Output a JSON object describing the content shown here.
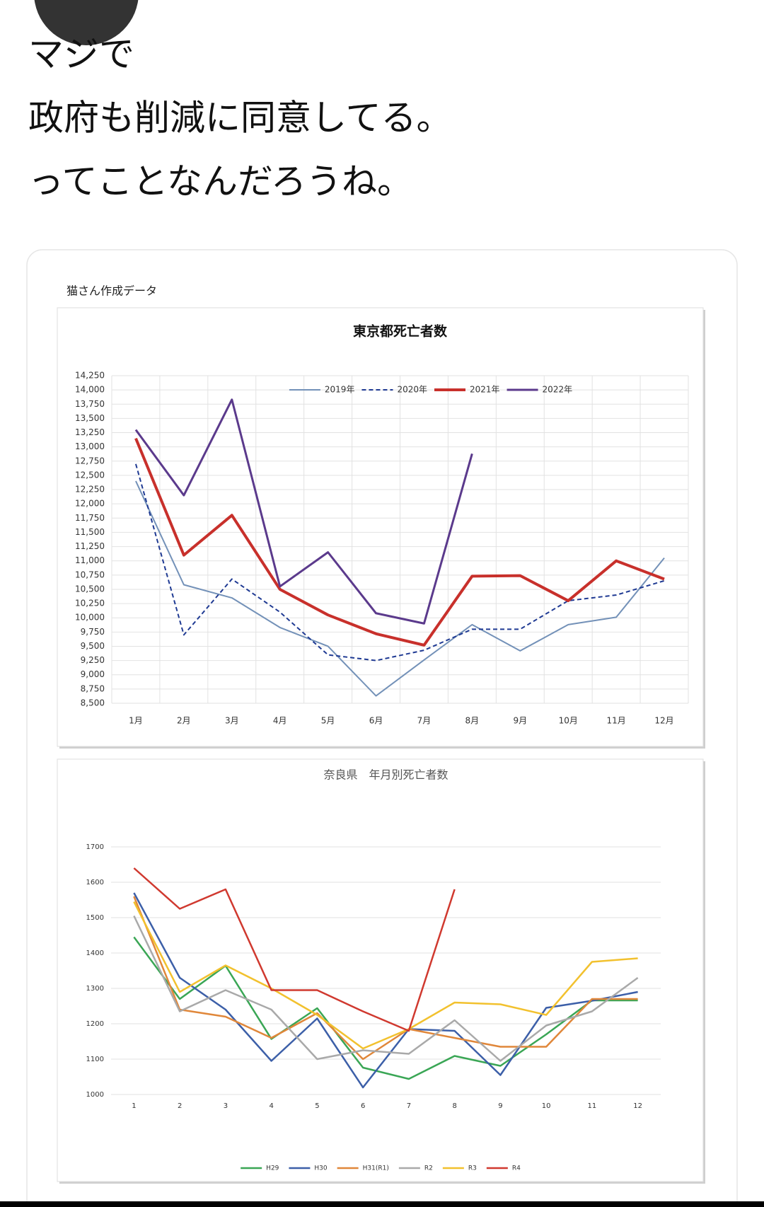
{
  "tweet": {
    "lines": [
      "マジで",
      "政府も削減に同意してる。",
      "ってことなんだろうね。"
    ]
  },
  "card_label": "猫さん作成データ",
  "chart_data": [
    {
      "type": "line",
      "title": "東京都死亡者数",
      "categories": [
        "1月",
        "2月",
        "3月",
        "4月",
        "5月",
        "6月",
        "7月",
        "8月",
        "9月",
        "10月",
        "11月",
        "12月"
      ],
      "series": [
        {
          "name": "2019年",
          "color": "#7391b8",
          "dash": false,
          "values": [
            12400,
            10580,
            10350,
            9830,
            9500,
            8630,
            9260,
            9880,
            9420,
            9880,
            10010,
            11050
          ]
        },
        {
          "name": "2020年",
          "color": "#1f3a93",
          "dash": true,
          "values": [
            12700,
            9700,
            10680,
            10100,
            9350,
            9250,
            9430,
            9800,
            9800,
            10300,
            10400,
            10650
          ]
        },
        {
          "name": "2021年",
          "color": "#c8302b",
          "dash": false,
          "values": [
            13150,
            11100,
            11800,
            10500,
            10050,
            9720,
            9520,
            10730,
            10740,
            10300,
            11000,
            10680
          ]
        },
        {
          "name": "2022年",
          "color": "#5b3a8c",
          "dash": false,
          "values": [
            13300,
            12150,
            13830,
            10550,
            11150,
            10080,
            9900,
            12880,
            null,
            null,
            null,
            null
          ]
        }
      ],
      "ylim": [
        8500,
        14250
      ],
      "yticks": [
        {
          "value": 8500,
          "label": "8,500"
        },
        {
          "value": 8750,
          "label": "8,750"
        },
        {
          "value": 9000,
          "label": "9,000"
        },
        {
          "value": 9250,
          "label": "9,250"
        },
        {
          "value": 9500,
          "label": "9,500"
        },
        {
          "value": 9750,
          "label": "9,750"
        },
        {
          "value": 10000,
          "label": "10,000"
        },
        {
          "value": 10250,
          "label": "10,250"
        },
        {
          "value": 10500,
          "label": "10,500"
        },
        {
          "value": 10750,
          "label": "10,750"
        },
        {
          "value": 11000,
          "label": "11,000"
        },
        {
          "value": 11250,
          "label": "11,250"
        },
        {
          "value": 11500,
          "label": "11,500"
        },
        {
          "value": 11750,
          "label": "11,750"
        },
        {
          "value": 12000,
          "label": "12,000"
        },
        {
          "value": 12250,
          "label": "12,250"
        },
        {
          "value": 12500,
          "label": "12,500"
        },
        {
          "value": 12750,
          "label": "12,750"
        },
        {
          "value": 13000,
          "label": "13,000"
        },
        {
          "value": 13250,
          "label": "13,250"
        },
        {
          "value": 13500,
          "label": "13,500"
        },
        {
          "value": 13750,
          "label": "13,750"
        },
        {
          "value": 14000,
          "label": "14,000"
        },
        {
          "value": 14250,
          "label": "14,250"
        }
      ],
      "grid": "both",
      "legend": "top"
    },
    {
      "type": "line",
      "title": "奈良県　年月別死亡者数",
      "categories": [
        "1",
        "2",
        "3",
        "4",
        "5",
        "6",
        "7",
        "8",
        "9",
        "10",
        "11",
        "12"
      ],
      "series": [
        {
          "name": "H29",
          "color": "#3aa655",
          "dash": false,
          "values": [
            1445,
            1270,
            1364,
            1157,
            1244,
            1076,
            1044,
            1109,
            1081,
            1170,
            1266,
            1266
          ]
        },
        {
          "name": "H30",
          "color": "#3c5fa8",
          "dash": false,
          "values": [
            1570,
            1330,
            1240,
            1095,
            1215,
            1020,
            1185,
            1180,
            1055,
            1245,
            1265,
            1290
          ]
        },
        {
          "name": "H31(R1)",
          "color": "#e0873a",
          "dash": false,
          "values": [
            1560,
            1240,
            1220,
            1160,
            1230,
            1100,
            1185,
            1160,
            1135,
            1135,
            1270,
            1270
          ]
        },
        {
          "name": "R2",
          "color": "#a9a9a9",
          "dash": false,
          "values": [
            1505,
            1235,
            1295,
            1240,
            1100,
            1125,
            1115,
            1210,
            1095,
            1195,
            1235,
            1330
          ]
        },
        {
          "name": "R3",
          "color": "#f2c12e",
          "dash": false,
          "values": [
            1545,
            1290,
            1365,
            1300,
            1225,
            1130,
            1185,
            1260,
            1255,
            1225,
            1375,
            1385
          ]
        },
        {
          "name": "R4",
          "color": "#d0392f",
          "dash": false,
          "values": [
            1640,
            1525,
            1580,
            1295,
            1295,
            1235,
            1180,
            1580,
            null,
            null,
            null,
            null
          ]
        }
      ],
      "ylim": [
        1000,
        1700
      ],
      "yticks": [
        1000,
        1100,
        1200,
        1300,
        1400,
        1500,
        1600,
        1700
      ],
      "grid": "y",
      "legend": "bottom"
    }
  ]
}
